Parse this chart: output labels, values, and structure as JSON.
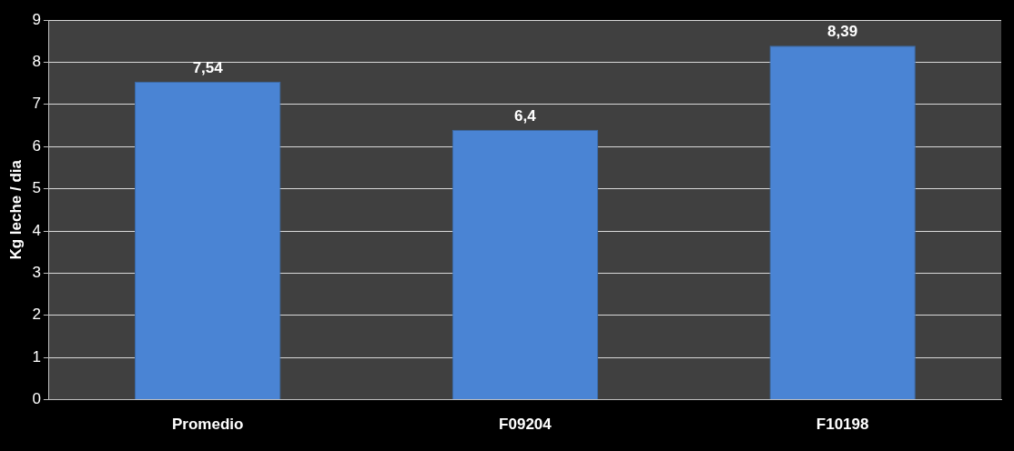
{
  "chart_data": {
    "type": "bar",
    "ylabel": "Kg leche / dia",
    "categories": [
      "Promedio",
      "F09204",
      "F10198"
    ],
    "values": [
      7.54,
      6.4,
      8.39
    ],
    "color": "#4a84d4",
    "value_labels": [
      "7,54",
      "6,4",
      "8,39"
    ],
    "ylim": [
      0,
      9
    ],
    "yticks": [
      0,
      1,
      2,
      3,
      4,
      5,
      6,
      7,
      8,
      9
    ],
    "grid": "y",
    "legend": false
  }
}
